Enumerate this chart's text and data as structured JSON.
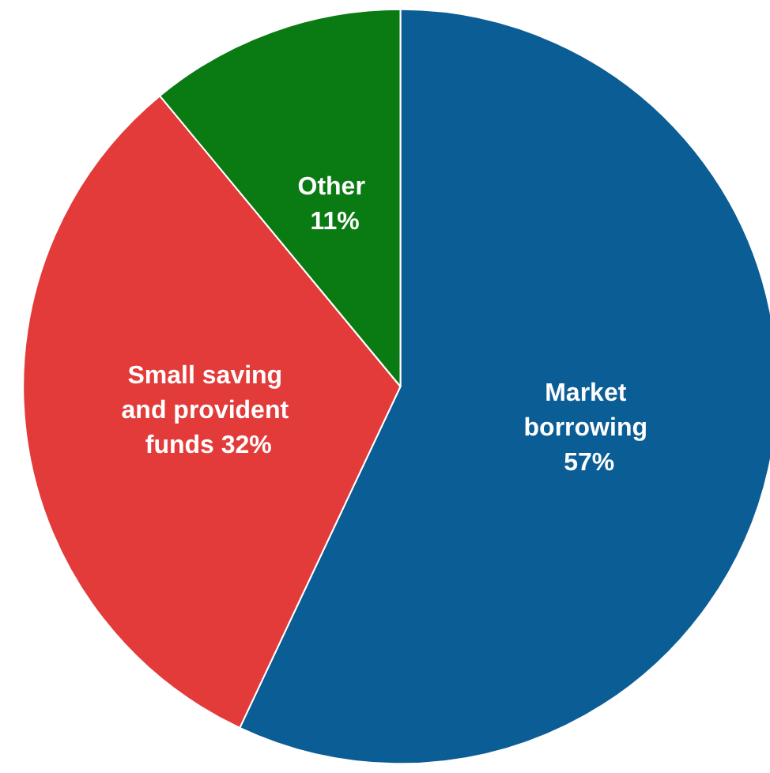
{
  "chart_data": {
    "type": "pie",
    "categories": [
      "Market borrowing",
      "Small saving and provident funds",
      "Other"
    ],
    "values": [
      57,
      32,
      11
    ],
    "colors": [
      "#0b5d95",
      "#e23b3a",
      "#0a7a12"
    ],
    "value_labels": [
      "57%",
      "32%",
      "11%"
    ],
    "legend": false
  }
}
